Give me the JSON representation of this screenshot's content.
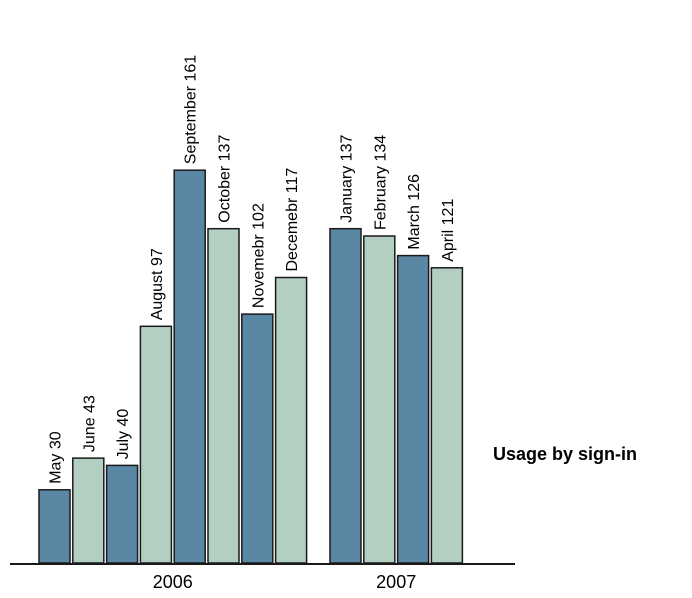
{
  "chart_data": {
    "type": "bar",
    "title": "Usage by sign-in",
    "xlabel": "",
    "ylabel": "",
    "ylim": [
      0,
      170
    ],
    "grid": false,
    "legend": "none",
    "colors": {
      "dark": "#5a87a3",
      "light": "#b3cfc2",
      "stroke": "#1a1a1a"
    },
    "groups": [
      {
        "label": "2006",
        "bars": [
          {
            "category": "May",
            "value": 30,
            "label": "May  30",
            "shade": "dark"
          },
          {
            "category": "June",
            "value": 43,
            "label": "June  43",
            "shade": "light"
          },
          {
            "category": "July",
            "value": 40,
            "label": "July  40",
            "shade": "dark"
          },
          {
            "category": "August",
            "value": 97,
            "label": "August  97",
            "shade": "light"
          },
          {
            "category": "September",
            "value": 161,
            "label": "September  161",
            "shade": "dark"
          },
          {
            "category": "October",
            "value": 137,
            "label": "October 137",
            "shade": "light"
          },
          {
            "category": "Novemebr",
            "value": 102,
            "label": "Novemebr 102",
            "shade": "dark"
          },
          {
            "category": "Decemebr",
            "value": 117,
            "label": "Decemebr 117",
            "shade": "light"
          }
        ]
      },
      {
        "label": "2007",
        "bars": [
          {
            "category": "January",
            "value": 137,
            "label": "January  137",
            "shade": "dark"
          },
          {
            "category": "February",
            "value": 134,
            "label": "February  134",
            "shade": "light"
          },
          {
            "category": "March",
            "value": 126,
            "label": "March  126",
            "shade": "dark"
          },
          {
            "category": "April",
            "value": 121,
            "label": "April  121",
            "shade": "light"
          }
        ]
      }
    ]
  }
}
